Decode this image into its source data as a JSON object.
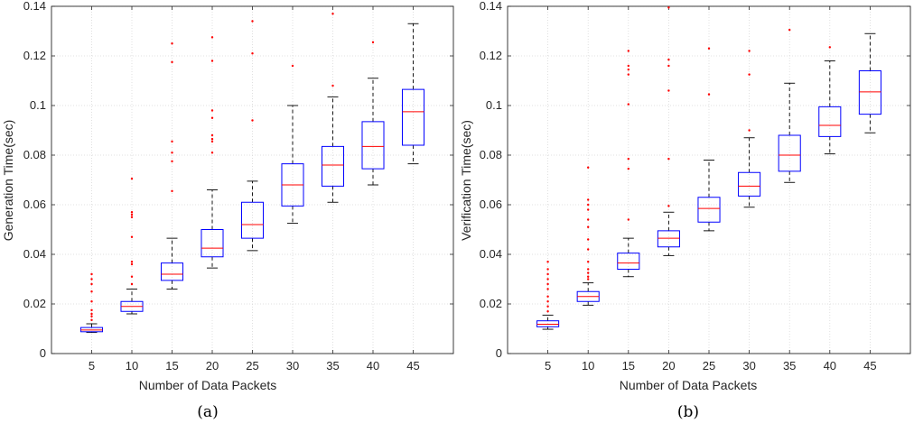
{
  "chart_data": [
    {
      "type": "box",
      "caption": "(a)",
      "xlabel": "Number of Data Packets",
      "ylabel": "Generation Time(sec)",
      "categories": [
        "5",
        "10",
        "15",
        "20",
        "25",
        "30",
        "35",
        "40",
        "45"
      ],
      "ylim": [
        0,
        0.14
      ],
      "yticks": [
        "0",
        "0.02",
        "0.04",
        "0.06",
        "0.08",
        "0.1",
        "0.12",
        "0.14"
      ],
      "grid": "dotted",
      "colors": {
        "box": "#0000ff",
        "median": "#ff0000",
        "whisker": "#000000",
        "outlier": "#ff0000",
        "grid": "#d9d9d9"
      },
      "boxes": [
        {
          "x": "5",
          "min": 0.0085,
          "q1": 0.0088,
          "median": 0.0095,
          "q3": 0.0105,
          "max": 0.012,
          "outliers": [
            0.0135,
            0.015,
            0.016,
            0.0175,
            0.021,
            0.025,
            0.028,
            0.03,
            0.032
          ]
        },
        {
          "x": "10",
          "min": 0.016,
          "q1": 0.017,
          "median": 0.019,
          "q3": 0.021,
          "max": 0.026,
          "outliers": [
            0.028,
            0.031,
            0.036,
            0.037,
            0.047,
            0.055,
            0.056,
            0.057,
            0.0705
          ]
        },
        {
          "x": "15",
          "min": 0.026,
          "q1": 0.0295,
          "median": 0.032,
          "q3": 0.0365,
          "max": 0.0465,
          "outliers": [
            0.0655,
            0.0775,
            0.081,
            0.0855,
            0.1175,
            0.125
          ]
        },
        {
          "x": "20",
          "min": 0.0345,
          "q1": 0.039,
          "median": 0.0425,
          "q3": 0.05,
          "max": 0.066,
          "outliers": [
            0.081,
            0.0855,
            0.0865,
            0.088,
            0.095,
            0.098,
            0.118,
            0.1275
          ]
        },
        {
          "x": "25",
          "min": 0.0415,
          "q1": 0.0465,
          "median": 0.052,
          "q3": 0.061,
          "max": 0.0695,
          "outliers": [
            0.094,
            0.121,
            0.134
          ]
        },
        {
          "x": "30",
          "min": 0.0525,
          "q1": 0.0595,
          "median": 0.068,
          "q3": 0.0765,
          "max": 0.1,
          "outliers": [
            0.116
          ]
        },
        {
          "x": "35",
          "min": 0.061,
          "q1": 0.0675,
          "median": 0.076,
          "q3": 0.0835,
          "max": 0.1035,
          "outliers": [
            0.108,
            0.137
          ]
        },
        {
          "x": "40",
          "min": 0.068,
          "q1": 0.0745,
          "median": 0.0835,
          "q3": 0.0935,
          "max": 0.111,
          "outliers": [
            0.1255
          ]
        },
        {
          "x": "45",
          "min": 0.0765,
          "q1": 0.084,
          "median": 0.0975,
          "q3": 0.1065,
          "max": 0.133,
          "outliers": []
        }
      ]
    },
    {
      "type": "box",
      "caption": "(b)",
      "xlabel": "Number of Data Packets",
      "ylabel": "Verification Time(sec)",
      "categories": [
        "5",
        "10",
        "15",
        "20",
        "25",
        "30",
        "35",
        "40",
        "45"
      ],
      "ylim": [
        0,
        0.14
      ],
      "yticks": [
        "0",
        "0.02",
        "0.04",
        "0.06",
        "0.08",
        "0.1",
        "0.12",
        "0.14"
      ],
      "grid": "dotted",
      "colors": {
        "box": "#0000ff",
        "median": "#ff0000",
        "whisker": "#000000",
        "outlier": "#ff0000",
        "grid": "#d9d9d9"
      },
      "boxes": [
        {
          "x": "5",
          "min": 0.0098,
          "q1": 0.0108,
          "median": 0.0118,
          "q3": 0.0132,
          "max": 0.0155,
          "outliers": [
            0.017,
            0.019,
            0.021,
            0.023,
            0.026,
            0.028,
            0.03,
            0.032,
            0.034,
            0.037
          ]
        },
        {
          "x": "10",
          "min": 0.0195,
          "q1": 0.021,
          "median": 0.023,
          "q3": 0.025,
          "max": 0.0285,
          "outliers": [
            0.03,
            0.031,
            0.0325,
            0.034,
            0.037,
            0.042,
            0.046,
            0.051,
            0.054,
            0.058,
            0.06,
            0.062,
            0.075
          ]
        },
        {
          "x": "15",
          "min": 0.031,
          "q1": 0.034,
          "median": 0.0365,
          "q3": 0.0405,
          "max": 0.0465,
          "outliers": [
            0.054,
            0.0745,
            0.0785,
            0.1005,
            0.1125,
            0.1145,
            0.116,
            0.122
          ]
        },
        {
          "x": "20",
          "min": 0.0395,
          "q1": 0.043,
          "median": 0.0465,
          "q3": 0.0495,
          "max": 0.057,
          "outliers": [
            0.0595,
            0.0785,
            0.106,
            0.116,
            0.1185,
            0.1395
          ]
        },
        {
          "x": "25",
          "min": 0.0495,
          "q1": 0.053,
          "median": 0.0585,
          "q3": 0.063,
          "max": 0.078,
          "outliers": [
            0.1045,
            0.123
          ]
        },
        {
          "x": "30",
          "min": 0.059,
          "q1": 0.0635,
          "median": 0.0675,
          "q3": 0.073,
          "max": 0.087,
          "outliers": [
            0.09,
            0.1125,
            0.122
          ]
        },
        {
          "x": "35",
          "min": 0.069,
          "q1": 0.0735,
          "median": 0.08,
          "q3": 0.088,
          "max": 0.109,
          "outliers": [
            0.1305
          ]
        },
        {
          "x": "40",
          "min": 0.0805,
          "q1": 0.0875,
          "median": 0.092,
          "q3": 0.0995,
          "max": 0.118,
          "outliers": [
            0.1235
          ]
        },
        {
          "x": "45",
          "min": 0.089,
          "q1": 0.0965,
          "median": 0.1055,
          "q3": 0.114,
          "max": 0.129,
          "outliers": []
        }
      ]
    }
  ]
}
